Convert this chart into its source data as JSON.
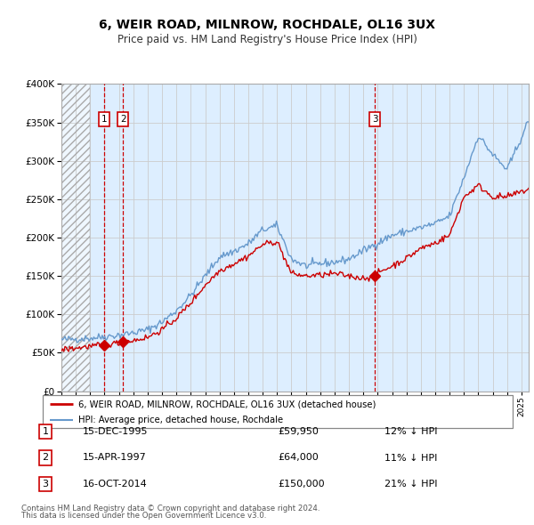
{
  "title": "6, WEIR ROAD, MILNROW, ROCHDALE, OL16 3UX",
  "subtitle": "Price paid vs. HM Land Registry's House Price Index (HPI)",
  "legend_line1": "6, WEIR ROAD, MILNROW, ROCHDALE, OL16 3UX (detached house)",
  "legend_line2": "HPI: Average price, detached house, Rochdale",
  "transactions": [
    {
      "num": 1,
      "date": "15-DEC-1995",
      "date_x": 1995.96,
      "price": 59950,
      "pct": "12% ↓ HPI"
    },
    {
      "num": 2,
      "date": "15-APR-1997",
      "date_x": 1997.29,
      "price": 64000,
      "pct": "11% ↓ HPI"
    },
    {
      "num": 3,
      "date": "16-OCT-2014",
      "date_x": 2014.79,
      "price": 150000,
      "pct": "21% ↓ HPI"
    }
  ],
  "footnote1": "Contains HM Land Registry data © Crown copyright and database right 2024.",
  "footnote2": "This data is licensed under the Open Government Licence v3.0.",
  "xmin": 1993.0,
  "xmax": 2025.5,
  "ymin": 0,
  "ymax": 400000,
  "hatch_xmax": 1995.0,
  "sale_color": "#cc0000",
  "hpi_color": "#6699cc",
  "grid_color": "#cccccc",
  "bg_color": "#ddeeff",
  "vline_color": "#cc0000",
  "box_color": "#cc0000",
  "fig_bg": "#ffffff",
  "hpi_anchors_t": [
    1993,
    1994,
    1995,
    1996,
    1997,
    1998,
    1999,
    2000,
    2001,
    2002,
    2003,
    2004,
    2005,
    2006,
    2007,
    2008,
    2009,
    2010,
    2011,
    2012,
    2013,
    2014,
    2015,
    2016,
    2017,
    2018,
    2019,
    2020,
    2021,
    2022,
    2023,
    2024,
    2025.5
  ],
  "hpi_anchors_v": [
    67000,
    68000,
    69000,
    71000,
    73000,
    76000,
    80000,
    90000,
    105000,
    125000,
    150000,
    175000,
    182000,
    192000,
    210000,
    215000,
    172000,
    163000,
    166000,
    168000,
    172000,
    183000,
    193000,
    203000,
    208000,
    213000,
    218000,
    228000,
    278000,
    333000,
    308000,
    288000,
    352000
  ],
  "prop_anchors_t": [
    1993,
    1994,
    1995,
    1995.96,
    1996.5,
    1997.0,
    1997.29,
    1998,
    1999,
    2000,
    2001,
    2002,
    2003,
    2004,
    2005,
    2006,
    2007,
    2008,
    2009,
    2010,
    2011,
    2012,
    2013,
    2014,
    2014.79,
    2015,
    2016,
    2017,
    2018,
    2019,
    2020,
    2021,
    2022,
    2023,
    2024,
    2025.5
  ],
  "prop_anchors_v": [
    54000,
    56000,
    58500,
    59950,
    61500,
    63000,
    64000,
    66000,
    70000,
    80000,
    95000,
    115000,
    138000,
    157000,
    166000,
    176000,
    191000,
    195000,
    153000,
    150000,
    151000,
    153000,
    150000,
    147000,
    150000,
    154000,
    163000,
    173000,
    186000,
    193000,
    203000,
    253000,
    268000,
    253000,
    253000,
    263000
  ]
}
